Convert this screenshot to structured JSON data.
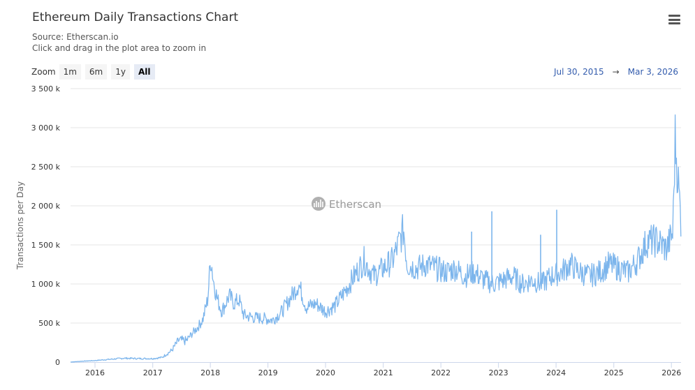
{
  "header": {
    "title": "Ethereum Daily Transactions Chart",
    "source": "Source: Etherscan.io",
    "hint": "Click and drag in the plot area to zoom in"
  },
  "toolbar": {
    "menu_icon": "hamburger-menu-icon",
    "zoom_label": "Zoom",
    "zoom_buttons": [
      "1m",
      "6m",
      "1y",
      "All"
    ],
    "zoom_active": "All",
    "range_from": "Jul 30, 2015",
    "range_arrow": "→",
    "range_to": "Mar 3, 2026"
  },
  "watermark": {
    "text": "Etherscan",
    "icon": "etherscan-logo-icon"
  },
  "colors": {
    "line": "#7cb5ec",
    "grid": "#e6e6e6",
    "range_text": "#335cad"
  },
  "chart_data": {
    "type": "line",
    "title": "Ethereum Daily Transactions Chart",
    "xlabel": "",
    "ylabel": "Transactions per Day",
    "xlim": [
      "2015-07-30",
      "2026-03-03"
    ],
    "ylim": [
      0,
      3500000
    ],
    "x_ticks": [
      "2016",
      "2017",
      "2018",
      "2019",
      "2020",
      "2021",
      "2022",
      "2023",
      "2024",
      "2025",
      "2026"
    ],
    "y_ticks": [
      "0",
      "500 k",
      "1 000 k",
      "1 500 k",
      "2 000 k",
      "2 500 k",
      "3 000 k",
      "3 500 k"
    ],
    "y_tick_values": [
      0,
      500000,
      1000000,
      1500000,
      2000000,
      2500000,
      3000000,
      3500000
    ],
    "grid": true,
    "legend": "none",
    "series": [
      {
        "values": [
          [
            "2015-07-30",
            0
          ],
          [
            "2015-10-01",
            10000
          ],
          [
            "2016-01-01",
            20000
          ],
          [
            "2016-04-01",
            35000
          ],
          [
            "2016-07-01",
            50000
          ],
          [
            "2016-10-01",
            45000
          ],
          [
            "2017-01-01",
            45000
          ],
          [
            "2017-03-01",
            60000
          ],
          [
            "2017-05-01",
            150000
          ],
          [
            "2017-06-15",
            280000
          ],
          [
            "2017-08-01",
            270000
          ],
          [
            "2017-09-01",
            350000
          ],
          [
            "2017-10-15",
            450000
          ],
          [
            "2017-11-15",
            550000
          ],
          [
            "2017-12-15",
            800000
          ],
          [
            "2018-01-04",
            1350000
          ],
          [
            "2018-01-20",
            1050000
          ],
          [
            "2018-02-15",
            800000
          ],
          [
            "2018-03-15",
            650000
          ],
          [
            "2018-05-01",
            850000
          ],
          [
            "2018-06-01",
            750000
          ],
          [
            "2018-07-01",
            800000
          ],
          [
            "2018-08-01",
            600000
          ],
          [
            "2018-10-01",
            570000
          ],
          [
            "2018-12-01",
            560000
          ],
          [
            "2019-02-01",
            540000
          ],
          [
            "2019-04-01",
            650000
          ],
          [
            "2019-06-01",
            850000
          ],
          [
            "2019-07-15",
            1000000
          ],
          [
            "2019-09-01",
            700000
          ],
          [
            "2019-11-01",
            750000
          ],
          [
            "2020-01-01",
            650000
          ],
          [
            "2020-03-01",
            720000
          ],
          [
            "2020-05-01",
            900000
          ],
          [
            "2020-07-01",
            1100000
          ],
          [
            "2020-09-01",
            1300000
          ],
          [
            "2020-11-01",
            1100000
          ],
          [
            "2021-01-01",
            1200000
          ],
          [
            "2021-03-01",
            1300000
          ],
          [
            "2021-05-10",
            1700000
          ],
          [
            "2021-06-01",
            1250000
          ],
          [
            "2021-08-01",
            1200000
          ],
          [
            "2021-10-01",
            1250000
          ],
          [
            "2021-12-01",
            1200000
          ],
          [
            "2022-02-01",
            1150000
          ],
          [
            "2022-04-01",
            1200000
          ],
          [
            "2022-06-01",
            1100000
          ],
          [
            "2022-08-01",
            1150000
          ],
          [
            "2022-10-01",
            1050000
          ],
          [
            "2022-12-01",
            1000000
          ],
          [
            "2023-02-01",
            1050000
          ],
          [
            "2023-04-01",
            1100000
          ],
          [
            "2023-06-01",
            1000000
          ],
          [
            "2023-08-01",
            1050000
          ],
          [
            "2023-10-01",
            1000000
          ],
          [
            "2023-12-01",
            1100000
          ],
          [
            "2024-02-01",
            1150000
          ],
          [
            "2024-04-01",
            1250000
          ],
          [
            "2024-06-01",
            1150000
          ],
          [
            "2024-08-01",
            1100000
          ],
          [
            "2024-10-01",
            1150000
          ],
          [
            "2024-12-01",
            1250000
          ],
          [
            "2025-02-01",
            1200000
          ],
          [
            "2025-04-01",
            1150000
          ],
          [
            "2025-06-01",
            1300000
          ],
          [
            "2025-08-01",
            1550000
          ],
          [
            "2025-10-01",
            1550000
          ],
          [
            "2025-12-01",
            1450000
          ],
          [
            "2026-01-10",
            1650000
          ],
          [
            "2026-01-25",
            2850000
          ],
          [
            "2026-02-10",
            2400000
          ],
          [
            "2026-03-03",
            1800000
          ]
        ]
      }
    ],
    "spikes": [
      [
        "2022-07-15",
        1670000
      ],
      [
        "2022-11-20",
        1930000
      ],
      [
        "2023-09-25",
        1630000
      ],
      [
        "2024-01-05",
        1950000
      ]
    ]
  }
}
